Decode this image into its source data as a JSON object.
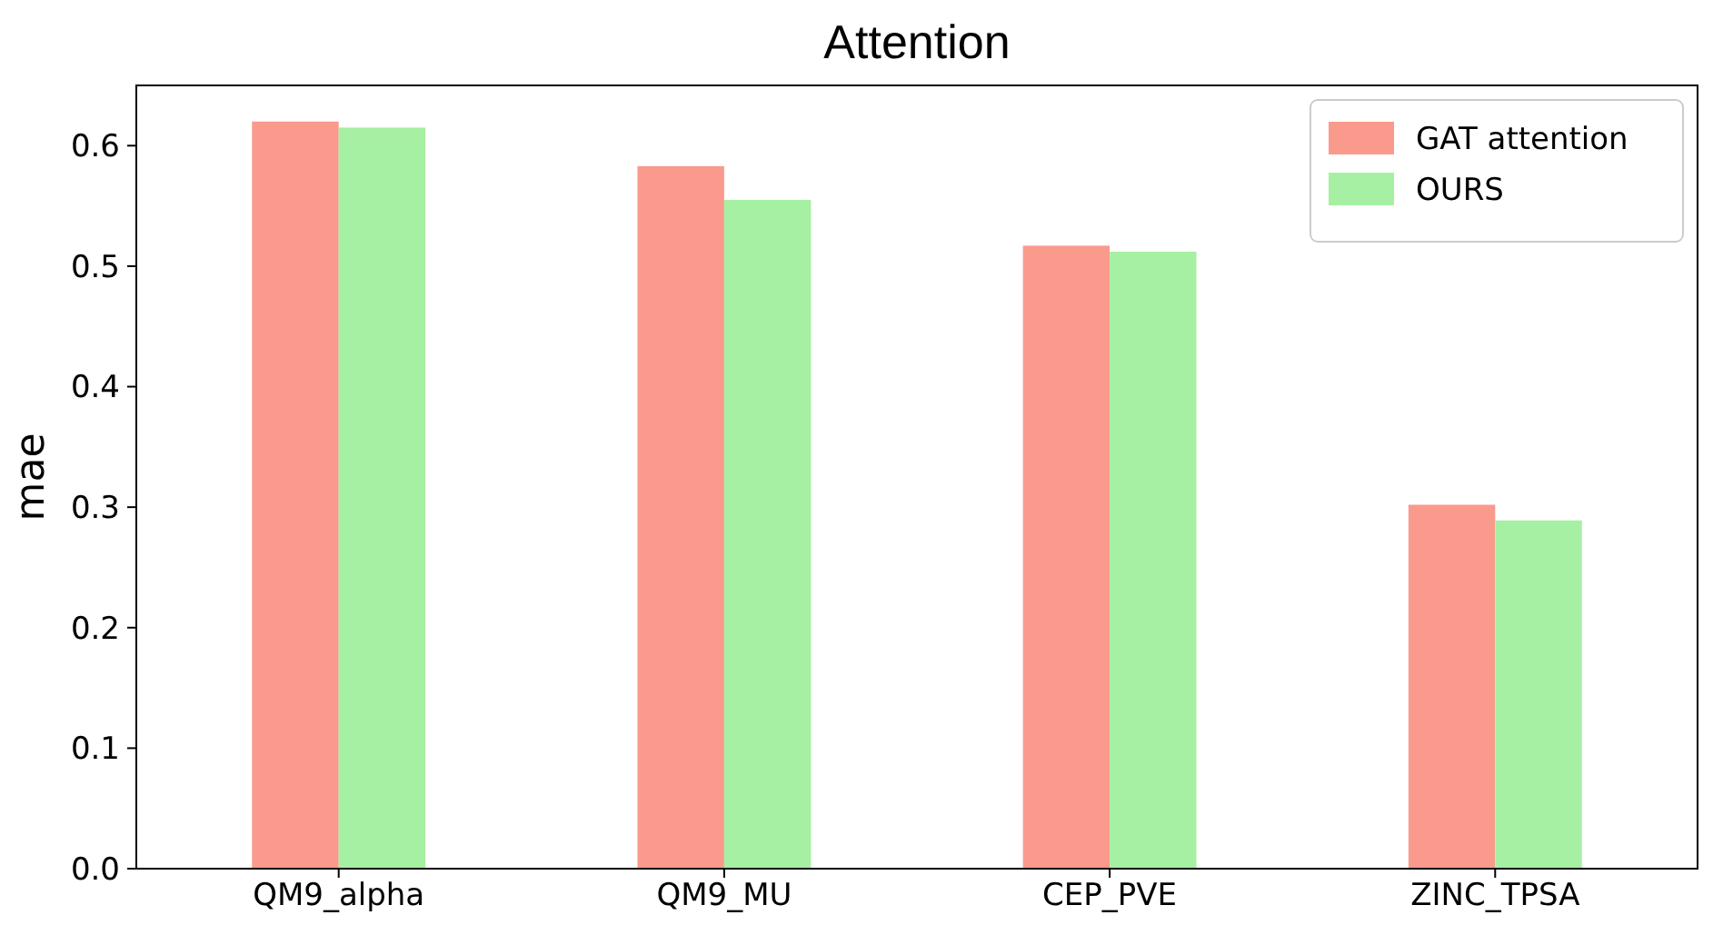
{
  "chart_data": {
    "type": "bar",
    "title": "Attention",
    "ylabel": "mae",
    "categories": [
      "QM9_alpha",
      "QM9_MU",
      "CEP_PVE",
      "ZINC_TPSA"
    ],
    "series": [
      {
        "name": "GAT attention",
        "color": "#f99a8d",
        "values": [
          0.62,
          0.583,
          0.517,
          0.302
        ]
      },
      {
        "name": "OURS",
        "color": "#a6f0a3",
        "values": [
          0.615,
          0.555,
          0.512,
          0.289
        ]
      }
    ],
    "ylim": [
      0,
      0.65
    ],
    "yticks": [
      {
        "value": 0,
        "label": "0.0"
      },
      0.1,
      0.2,
      0.3,
      0.4,
      0.5,
      0.6
    ],
    "grid": false,
    "legend": "top right"
  }
}
